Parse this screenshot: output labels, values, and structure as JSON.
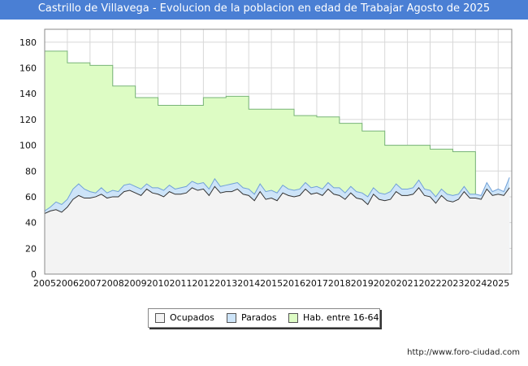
{
  "title": "Castrillo de Villavega - Evolucion de la poblacion en edad de Trabajar Agosto de 2025",
  "source": "http://www.foro-ciudad.com",
  "colors": {
    "title_bg": "#4a7fd4",
    "hab_fill": "#ddfcc4",
    "hab_line": "#78b478",
    "parados_fill": "#cde4f8",
    "parados_line": "#6fa0d8",
    "ocupados_fill": "#f3f3f3",
    "ocupados_line": "#333333",
    "grid": "#d8d8d8"
  },
  "legend": [
    {
      "label": "Ocupados",
      "color": "#f3f3f3"
    },
    {
      "label": "Parados",
      "color": "#cde4f8"
    },
    {
      "label": "Hab. entre 16-64",
      "color": "#ddfcc4"
    }
  ],
  "chart_data": {
    "type": "area",
    "title": "Castrillo de Villavega - Evolucion de la poblacion en edad de Trabajar Agosto de 2025",
    "xlabel": "",
    "ylabel": "",
    "xlim": [
      2005,
      2025.6
    ],
    "ylim": [
      0,
      190
    ],
    "x_ticks": [
      2005,
      2006,
      2007,
      2008,
      2009,
      2010,
      2011,
      2012,
      2013,
      2014,
      2015,
      2016,
      2017,
      2018,
      2019,
      2020,
      2021,
      2022,
      2023,
      2024,
      2025
    ],
    "y_ticks": [
      0,
      20,
      40,
      60,
      80,
      100,
      120,
      140,
      160,
      180
    ],
    "grid": true,
    "series": [
      {
        "name": "Hab. entre 16-64",
        "kind": "step",
        "years": [
          2005,
          2006,
          2007,
          2008,
          2009,
          2010,
          2011,
          2012,
          2013,
          2014,
          2015,
          2016,
          2017,
          2018,
          2019,
          2020,
          2021,
          2022,
          2023
        ],
        "values": [
          173,
          164,
          162,
          146,
          137,
          131,
          131,
          137,
          138,
          128,
          128,
          123,
          122,
          117,
          111,
          100,
          100,
          97,
          95
        ]
      },
      {
        "name": "Parados",
        "x": [
          2005.0,
          2005.25,
          2005.5,
          2005.75,
          2006.0,
          2006.25,
          2006.5,
          2006.75,
          2007.0,
          2007.25,
          2007.5,
          2007.75,
          2008.0,
          2008.25,
          2008.5,
          2008.75,
          2009.0,
          2009.25,
          2009.5,
          2009.75,
          2010.0,
          2010.25,
          2010.5,
          2010.75,
          2011.0,
          2011.25,
          2011.5,
          2011.75,
          2012.0,
          2012.25,
          2012.5,
          2012.75,
          2013.0,
          2013.25,
          2013.5,
          2013.75,
          2014.0,
          2014.25,
          2014.5,
          2014.75,
          2015.0,
          2015.25,
          2015.5,
          2015.75,
          2016.0,
          2016.25,
          2016.5,
          2016.75,
          2017.0,
          2017.25,
          2017.5,
          2017.75,
          2018.0,
          2018.25,
          2018.5,
          2018.75,
          2019.0,
          2019.25,
          2019.5,
          2019.75,
          2020.0,
          2020.25,
          2020.5,
          2020.75,
          2021.0,
          2021.25,
          2021.5,
          2021.75,
          2022.0,
          2022.25,
          2022.5,
          2022.75,
          2023.0,
          2023.25,
          2023.5,
          2023.75,
          2024.0,
          2024.25,
          2024.5,
          2024.75,
          2025.0,
          2025.25,
          2025.5
        ],
        "values": [
          49,
          52,
          56,
          54,
          58,
          66,
          70,
          66,
          64,
          63,
          67,
          63,
          65,
          64,
          69,
          70,
          68,
          66,
          70,
          67,
          67,
          65,
          69,
          66,
          67,
          68,
          72,
          70,
          71,
          66,
          74,
          68,
          69,
          70,
          71,
          67,
          66,
          62,
          70,
          64,
          65,
          63,
          69,
          66,
          65,
          66,
          71,
          67,
          68,
          66,
          71,
          67,
          67,
          63,
          68,
          64,
          63,
          60,
          67,
          63,
          62,
          64,
          70,
          66,
          66,
          67,
          73,
          66,
          65,
          60,
          66,
          62,
          61,
          62,
          68,
          62,
          62,
          61,
          71,
          64,
          66,
          64,
          75
        ]
      },
      {
        "name": "Ocupados",
        "x": [
          2005.0,
          2005.25,
          2005.5,
          2005.75,
          2006.0,
          2006.25,
          2006.5,
          2006.75,
          2007.0,
          2007.25,
          2007.5,
          2007.75,
          2008.0,
          2008.25,
          2008.5,
          2008.75,
          2009.0,
          2009.25,
          2009.5,
          2009.75,
          2010.0,
          2010.25,
          2010.5,
          2010.75,
          2011.0,
          2011.25,
          2011.5,
          2011.75,
          2012.0,
          2012.25,
          2012.5,
          2012.75,
          2013.0,
          2013.25,
          2013.5,
          2013.75,
          2014.0,
          2014.25,
          2014.5,
          2014.75,
          2015.0,
          2015.25,
          2015.5,
          2015.75,
          2016.0,
          2016.25,
          2016.5,
          2016.75,
          2017.0,
          2017.25,
          2017.5,
          2017.75,
          2018.0,
          2018.25,
          2018.5,
          2018.75,
          2019.0,
          2019.25,
          2019.5,
          2019.75,
          2020.0,
          2020.25,
          2020.5,
          2020.75,
          2021.0,
          2021.25,
          2021.5,
          2021.75,
          2022.0,
          2022.25,
          2022.5,
          2022.75,
          2023.0,
          2023.25,
          2023.5,
          2023.75,
          2024.0,
          2024.25,
          2024.5,
          2024.75,
          2025.0,
          2025.25,
          2025.5
        ],
        "values": [
          47,
          49,
          50,
          48,
          52,
          58,
          61,
          59,
          59,
          60,
          62,
          59,
          60,
          60,
          64,
          65,
          63,
          61,
          66,
          63,
          62,
          60,
          64,
          62,
          62,
          63,
          67,
          65,
          66,
          61,
          68,
          63,
          64,
          64,
          66,
          62,
          61,
          57,
          64,
          58,
          59,
          57,
          63,
          61,
          60,
          61,
          66,
          62,
          63,
          61,
          66,
          62,
          61,
          58,
          63,
          59,
          58,
          54,
          62,
          58,
          57,
          58,
          64,
          61,
          61,
          62,
          67,
          61,
          60,
          55,
          61,
          57,
          56,
          58,
          64,
          59,
          59,
          58,
          66,
          61,
          62,
          61,
          67
        ]
      }
    ]
  }
}
